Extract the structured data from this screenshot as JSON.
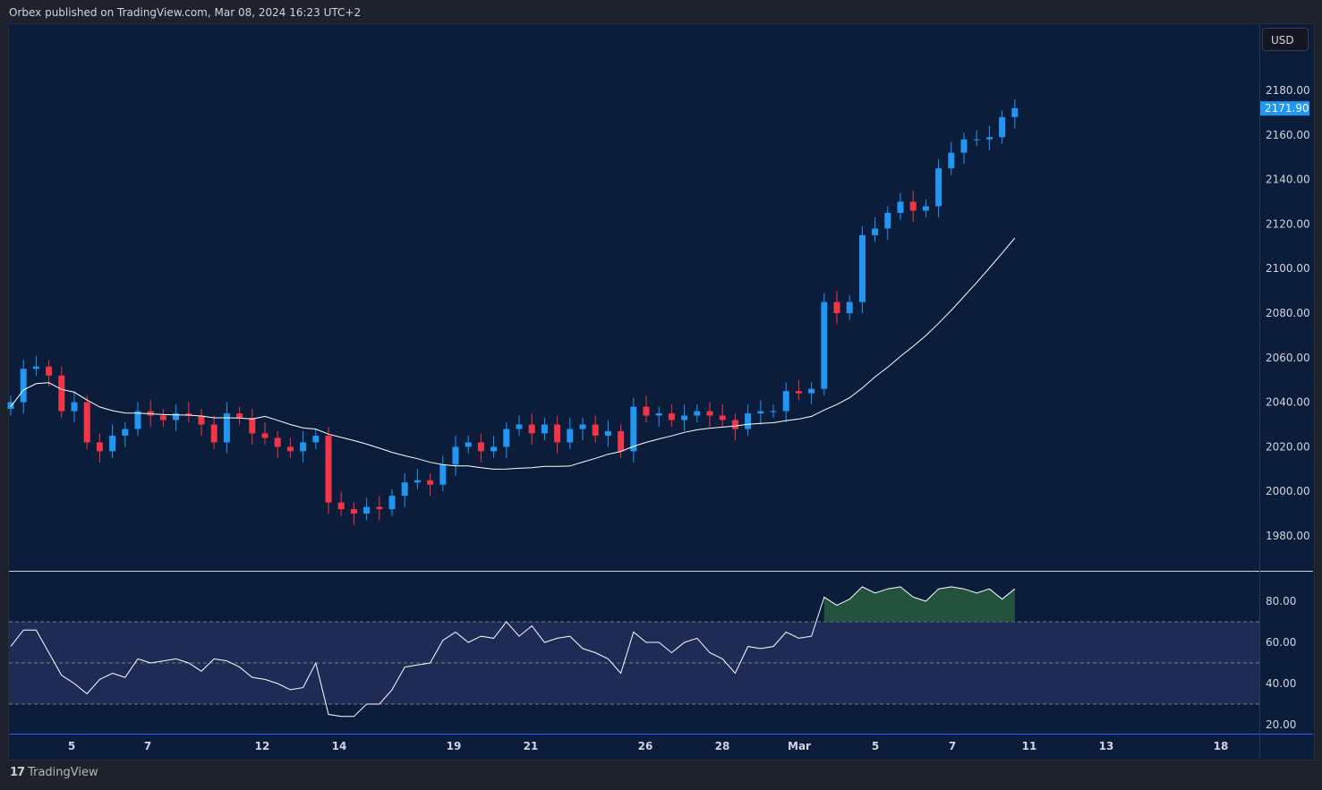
{
  "header": {
    "published": "Orbex published on TradingView.com, Mar 08, 2024 16:23 UTC+2"
  },
  "currency_button": "USD",
  "footer": {
    "brand": "TradingView",
    "logo_icon": "tradingview-logo-icon"
  },
  "colors": {
    "up": "#2196f3",
    "down": "#f23645",
    "ma": "#ffffff",
    "rsi": "#ffffff",
    "rsi_band": "#1f2b55",
    "overbought_fill": "#2e6b3f",
    "background": "#0b1d3a"
  },
  "chart_data": [
    {
      "type": "candlestick",
      "title": "Price",
      "ylim": [
        1970,
        2190
      ],
      "ylabel": "USD",
      "y_ticks": [
        "2180.00",
        "2160.00",
        "2140.00",
        "2120.00",
        "2100.00",
        "2080.00",
        "2060.00",
        "2040.00",
        "2020.00",
        "2000.00",
        "1980.00"
      ],
      "last_price": "2171.90",
      "x_ticks": [
        "5",
        "7",
        "12",
        "14",
        "19",
        "21",
        "26",
        "28",
        "Mar",
        "5",
        "7",
        "11",
        "13",
        "18"
      ],
      "moving_average_period": 20,
      "closes": [
        2040,
        2055,
        2056,
        2052,
        2036,
        2040,
        2022,
        2018,
        2025,
        2028,
        2036,
        2034,
        2032,
        2035,
        2034,
        2030,
        2022,
        2035,
        2033,
        2026,
        2024,
        2020,
        2018,
        2022,
        2025,
        1995,
        1992,
        1990,
        1993,
        1992,
        1998,
        2004,
        2005,
        2003,
        2012,
        2020,
        2022,
        2018,
        2020,
        2028,
        2030,
        2026,
        2030,
        2022,
        2028,
        2030,
        2025,
        2027,
        2018,
        2038,
        2034,
        2035,
        2032,
        2034,
        2036,
        2034,
        2032,
        2028,
        2035,
        2036,
        2036,
        2045,
        2044,
        2046,
        2085,
        2080,
        2085,
        2115,
        2118,
        2125,
        2130,
        2126,
        2128,
        2145,
        2152,
        2158,
        2158,
        2159,
        2168,
        2172
      ]
    },
    {
      "type": "line",
      "title": "RSI",
      "ylim": [
        15,
        90
      ],
      "y_ticks": [
        "80.00",
        "60.00",
        "40.00",
        "20.00"
      ],
      "bands": [
        70,
        50,
        30
      ],
      "values": [
        58,
        66,
        66,
        55,
        44,
        40,
        35,
        42,
        45,
        43,
        52,
        50,
        51,
        52,
        50,
        46,
        52,
        51,
        48,
        43,
        42,
        40,
        37,
        38,
        50,
        25,
        24,
        24,
        30,
        30,
        37,
        48,
        49,
        50,
        61,
        65,
        60,
        63,
        62,
        70,
        63,
        68,
        60,
        62,
        63,
        57,
        55,
        52,
        45,
        65,
        60,
        60,
        55,
        60,
        62,
        55,
        52,
        45,
        58,
        57,
        58,
        65,
        62,
        63,
        82,
        78,
        81,
        87,
        84,
        86,
        87,
        82,
        80,
        86,
        87,
        86,
        84,
        86,
        81,
        86
      ]
    }
  ]
}
